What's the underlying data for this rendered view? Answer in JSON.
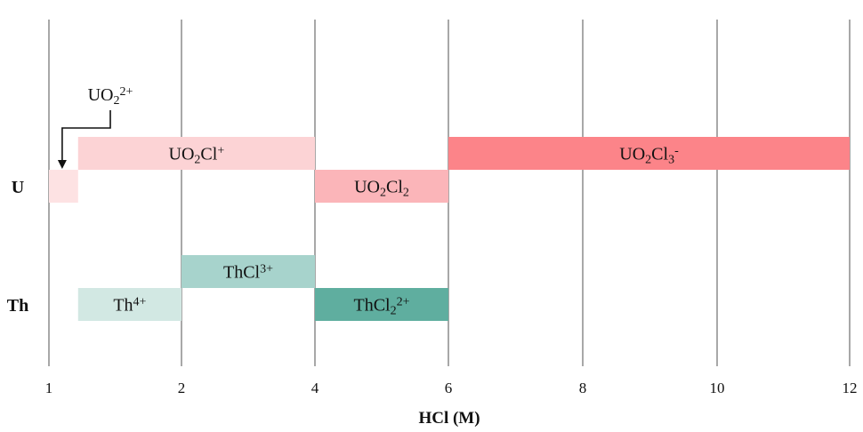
{
  "chart_data": {
    "type": "bar",
    "orientation": "horizontal-ranges",
    "xlabel": "HCl (M)",
    "x_ticks": [
      "1",
      "2",
      "4",
      "6",
      "8",
      "10",
      "12"
    ],
    "rows": [
      {
        "id": "U",
        "label": "U"
      },
      {
        "id": "Th",
        "label": "Th"
      }
    ],
    "series": [
      {
        "row": "U",
        "level": 0,
        "start": 1.0,
        "end": 1.22,
        "label": [],
        "color": "#fde2e3"
      },
      {
        "row": "U",
        "level": 1,
        "start": 1.22,
        "end": 4,
        "label": [
          {
            "t": "UO"
          },
          {
            "t": "2",
            "s": "sub"
          },
          {
            "t": "Cl"
          },
          {
            "t": "+",
            "s": "sup"
          }
        ],
        "color": "#fcd3d5"
      },
      {
        "row": "U",
        "level": 0,
        "start": 4,
        "end": 6,
        "label": [
          {
            "t": "UO"
          },
          {
            "t": "2",
            "s": "sub"
          },
          {
            "t": "Cl"
          },
          {
            "t": "2",
            "s": "sub"
          }
        ],
        "color": "#fbb5b9"
      },
      {
        "row": "U",
        "level": 1,
        "start": 6,
        "end": 12,
        "label": [
          {
            "t": "UO"
          },
          {
            "t": "2",
            "s": "sub"
          },
          {
            "t": "Cl"
          },
          {
            "t": "3",
            "s": "sub"
          },
          {
            "t": "-",
            "s": "sup"
          }
        ],
        "color": "#fc8489"
      },
      {
        "row": "Th",
        "level": 0,
        "start": 1.22,
        "end": 2,
        "label": [
          {
            "t": "Th"
          },
          {
            "t": "4+",
            "s": "sup"
          }
        ],
        "color": "#d2e8e3"
      },
      {
        "row": "Th",
        "level": 1,
        "start": 2,
        "end": 4,
        "label": [
          {
            "t": "ThCl"
          },
          {
            "t": "3+",
            "s": "sup"
          }
        ],
        "color": "#a7d3cc"
      },
      {
        "row": "Th",
        "level": 0,
        "start": 4,
        "end": 6,
        "label": [
          {
            "t": "ThCl"
          },
          {
            "t": "2",
            "s": "sub"
          },
          {
            "t": "2+",
            "s": "sup"
          }
        ],
        "color": "#5fae9f"
      }
    ],
    "annotation": {
      "label": [
        {
          "t": "UO"
        },
        {
          "t": "2",
          "s": "sub"
        },
        {
          "t": "2+",
          "s": "sup"
        }
      ],
      "points_to": 1.1,
      "arrow": true
    },
    "grid": true
  }
}
